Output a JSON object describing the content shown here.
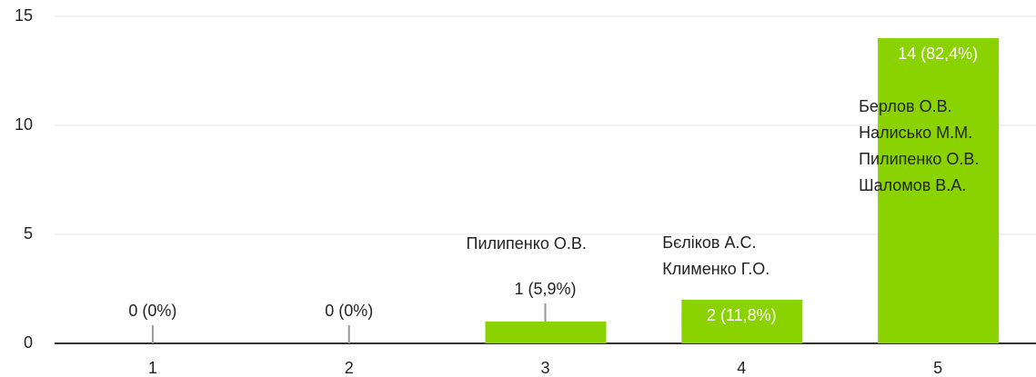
{
  "chart_data": {
    "type": "bar",
    "categories": [
      "1",
      "2",
      "3",
      "4",
      "5"
    ],
    "values": [
      0,
      0,
      1,
      2,
      14
    ],
    "value_labels": [
      "0 (0%)",
      "0 (0%)",
      "1 (5,9%)",
      "2 (11,8%)",
      "14 (82,4%)"
    ],
    "annotations": [
      [],
      [],
      [
        "Пилипенко О.В."
      ],
      [
        "Бєліков А.С.",
        "Клименко Г.О."
      ],
      [
        "Берлов О.В.",
        "Налисько М.М.",
        "Пилипенко О.В.",
        "Шаломов В.А."
      ]
    ],
    "color": "#8bd300",
    "ylim": [
      0,
      15
    ],
    "yticks": [
      0,
      5,
      10,
      15
    ],
    "grid": true
  }
}
